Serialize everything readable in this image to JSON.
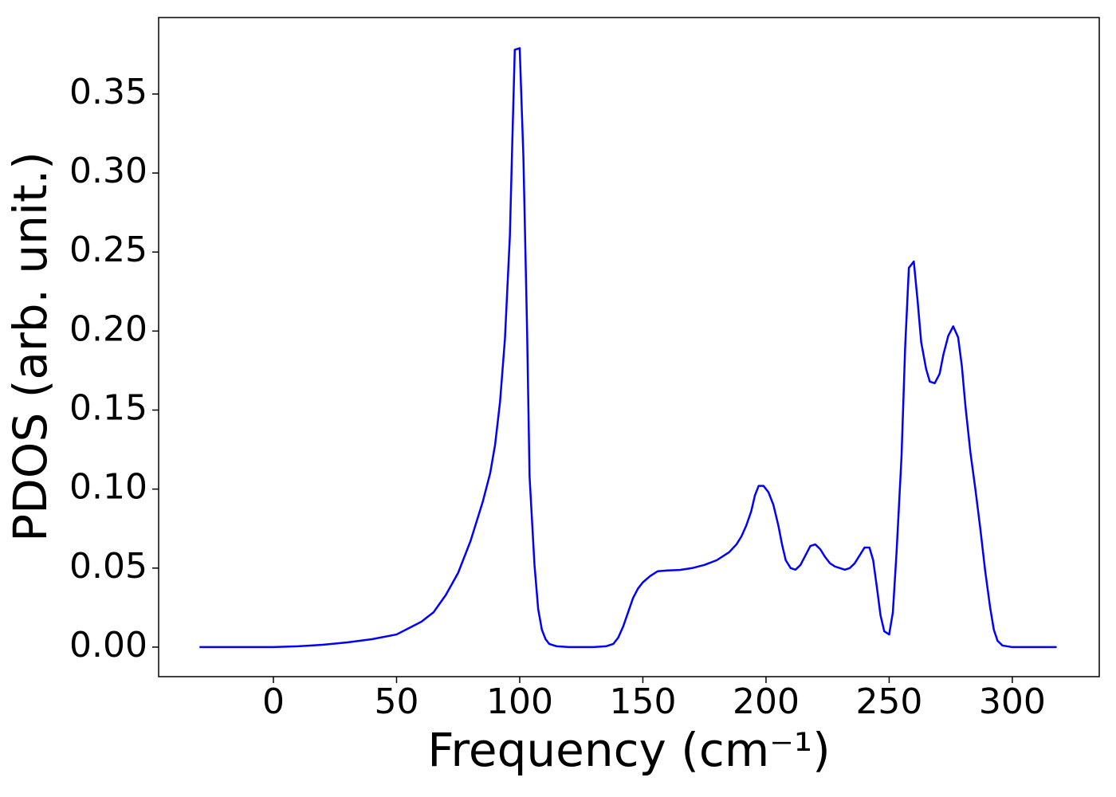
{
  "chart_data": {
    "type": "line",
    "xlabel": "Frequency (cm⁻¹)",
    "ylabel": "PDOS (arb. unit.)",
    "series": [
      {
        "color": "#0000ff",
        "x": [
          -30,
          0,
          10,
          20,
          30,
          40,
          50,
          60,
          65,
          70,
          75,
          80,
          85,
          88,
          90,
          92,
          94,
          96,
          97,
          98,
          100,
          101.5,
          103,
          104,
          106,
          107.5,
          109,
          110.5,
          112,
          115,
          120,
          130,
          135,
          138,
          140,
          142,
          144,
          146,
          148,
          150,
          153,
          156,
          160,
          165,
          170,
          175,
          180,
          185,
          188,
          190,
          192,
          194,
          195.5,
          197,
          199,
          201,
          203,
          205,
          206.5,
          208,
          210,
          212,
          214,
          216,
          218,
          220,
          222,
          224,
          226,
          228,
          230,
          232,
          234,
          236,
          238,
          240,
          242,
          243.5,
          245,
          246.5,
          248,
          250,
          251.5,
          253,
          255,
          256.5,
          258,
          260,
          261.5,
          263,
          265,
          266.5,
          268.5,
          270.5,
          272,
          274,
          276,
          278,
          279.5,
          281,
          283,
          285,
          287,
          289,
          291,
          292.5,
          294,
          296,
          300,
          318
        ],
        "values": [
          0,
          0,
          0.0005,
          0.0015,
          0.003,
          0.005,
          0.008,
          0.016,
          0.022,
          0.033,
          0.047,
          0.067,
          0.092,
          0.11,
          0.128,
          0.155,
          0.195,
          0.26,
          0.32,
          0.378,
          0.379,
          0.31,
          0.2,
          0.108,
          0.052,
          0.024,
          0.011,
          0.005,
          0.002,
          0.0005,
          0,
          0,
          0.0005,
          0.002,
          0.006,
          0.013,
          0.022,
          0.031,
          0.037,
          0.041,
          0.045,
          0.048,
          0.0485,
          0.0488,
          0.05,
          0.052,
          0.055,
          0.06,
          0.065,
          0.07,
          0.077,
          0.086,
          0.096,
          0.102,
          0.102,
          0.098,
          0.09,
          0.077,
          0.065,
          0.055,
          0.05,
          0.049,
          0.052,
          0.058,
          0.064,
          0.065,
          0.062,
          0.057,
          0.053,
          0.051,
          0.05,
          0.049,
          0.05,
          0.053,
          0.058,
          0.063,
          0.063,
          0.055,
          0.038,
          0.02,
          0.01,
          0.008,
          0.022,
          0.06,
          0.12,
          0.19,
          0.24,
          0.244,
          0.22,
          0.193,
          0.176,
          0.168,
          0.167,
          0.173,
          0.185,
          0.197,
          0.203,
          0.196,
          0.178,
          0.152,
          0.123,
          0.1,
          0.075,
          0.048,
          0.025,
          0.011,
          0.004,
          0.001,
          0,
          0
        ]
      }
    ],
    "xlim": [
      -46.6,
      335.3
    ],
    "ylim": [
      -0.0187,
      0.3984
    ],
    "xticks": [
      0,
      50,
      100,
      150,
      200,
      250,
      300
    ],
    "yticks": [
      {
        "value": 0,
        "label": "0.00"
      },
      {
        "value": 0.05,
        "label": "0.05"
      },
      {
        "value": 0.1,
        "label": "0.10"
      },
      {
        "value": 0.15,
        "label": "0.15"
      },
      {
        "value": 0.2,
        "label": "0.20"
      },
      {
        "value": 0.25,
        "label": "0.25"
      },
      {
        "value": 0.3,
        "label": "0.30"
      },
      {
        "value": 0.35,
        "label": "0.35"
      }
    ],
    "grid": false
  }
}
